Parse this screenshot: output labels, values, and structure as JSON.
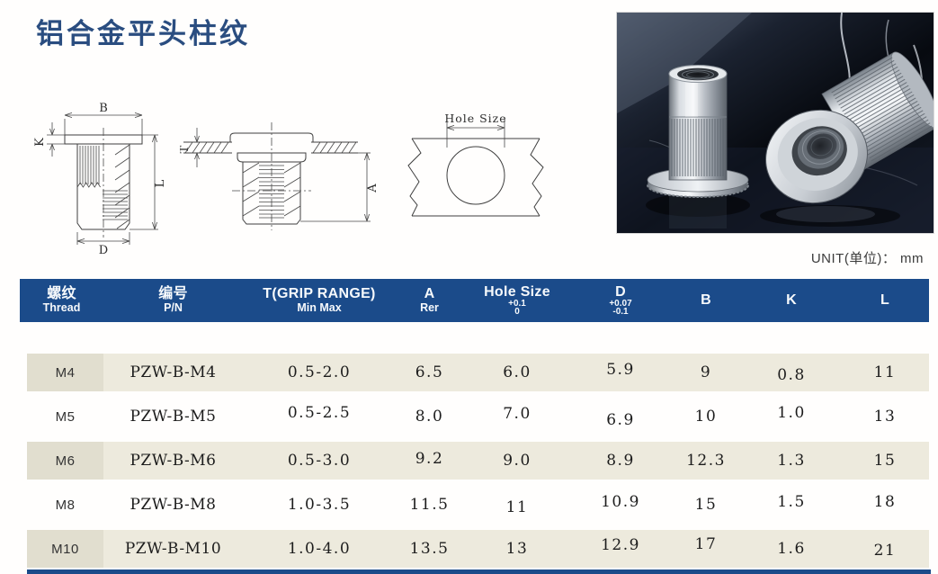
{
  "page": {
    "title": "铝合金平头柱纹",
    "unit_label": "UNIT(单位)： mm"
  },
  "diagrams": {
    "section": {
      "b": "B",
      "k": "K",
      "l": "L",
      "d": "D"
    },
    "installed": {
      "t": "T",
      "a": "A"
    },
    "hole": {
      "label": "Hole Size"
    }
  },
  "table": {
    "headers": [
      {
        "key": "thread",
        "line1": "螺纹",
        "line2": "Thread"
      },
      {
        "key": "pn",
        "line1": "编号",
        "line2": "P/N"
      },
      {
        "key": "grip",
        "line1": "T(GRIP RANGE)",
        "line2": "Min Max"
      },
      {
        "key": "a",
        "line1": "A",
        "line2": "Rer"
      },
      {
        "key": "holesize",
        "line1": "Hole Size",
        "line2": "+0.1",
        "line3": "0"
      },
      {
        "key": "d",
        "line1": "D",
        "line2": "+0.07",
        "line3": "-0.1"
      },
      {
        "key": "b",
        "line1": "B"
      },
      {
        "key": "k",
        "line1": "K"
      },
      {
        "key": "l",
        "line1": "L"
      }
    ],
    "rows": [
      [
        "M4",
        "PZW-B-M4",
        "0.5-2.0",
        "6.5",
        "6.0",
        "5.9",
        "9",
        "0.8",
        "11"
      ],
      [
        "M5",
        "PZW-B-M5",
        "0.5-2.5",
        "8.0",
        "7.0",
        "6.9",
        "10",
        "1.0",
        "13"
      ],
      [
        "M6",
        "PZW-B-M6",
        "0.5-3.0",
        "9.2",
        "9.0",
        "8.9",
        "12.3",
        "1.3",
        "15"
      ],
      [
        "M8",
        "PZW-B-M8",
        "1.0-3.5",
        "11.5",
        "11",
        "10.9",
        "15",
        "1.5",
        "18"
      ],
      [
        "M10",
        "PZW-B-M10",
        "1.0-4.0",
        "13.5",
        "13",
        "12.9",
        "17",
        "1.6",
        "21"
      ]
    ]
  },
  "colors": {
    "title": "#2a4d80",
    "header_bg": "#1b4b8a",
    "row_stripe": "#edeadd",
    "row_stripe_first_col": "#e1decf",
    "header_text": "#f6f9fc"
  }
}
